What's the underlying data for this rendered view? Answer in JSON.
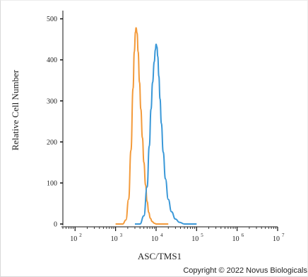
{
  "chart_data": {
    "type": "line",
    "title": "",
    "xlabel": "ASC/TMS1",
    "ylabel": "Relative Cell Number",
    "x_scale": "log",
    "xlim": [
      50,
      10000000
    ],
    "ylim": [
      0,
      520
    ],
    "y_ticks": [
      0,
      100,
      200,
      300,
      400,
      500
    ],
    "x_ticks": [
      {
        "base": "10",
        "exp": "2"
      },
      {
        "base": "10",
        "exp": "3"
      },
      {
        "base": "10",
        "exp": "4"
      },
      {
        "base": "10",
        "exp": "5"
      },
      {
        "base": "10",
        "exp": "6"
      },
      {
        "base": "10",
        "exp": "7"
      }
    ],
    "x_tick_values": [
      100,
      1000,
      10000,
      100000,
      1000000,
      10000000
    ],
    "grid": false,
    "legend": "none",
    "series": [
      {
        "color": "#f39a3a",
        "x": [
          1000,
          1500,
          1800,
          2100,
          2400,
          2700,
          2900,
          3100,
          3200,
          3400,
          3600,
          3900,
          4200,
          4600,
          5000,
          5500,
          6000,
          6600,
          7200,
          8000,
          9000,
          10000,
          20000
        ],
        "y": [
          0,
          0,
          10,
          60,
          180,
          330,
          420,
          468,
          478,
          465,
          420,
          345,
          280,
          210,
          150,
          95,
          55,
          28,
          14,
          6,
          2,
          0,
          0
        ]
      },
      {
        "color": "#3a98d8",
        "x": [
          3000,
          4000,
          5000,
          6000,
          6800,
          7500,
          8200,
          9000,
          9600,
          10000,
          10500,
          11000,
          11700,
          12500,
          13500,
          15000,
          17000,
          20000,
          24000,
          30000,
          38000,
          50000,
          100000
        ],
        "y": [
          0,
          0,
          20,
          90,
          190,
          280,
          345,
          395,
          425,
          438,
          432,
          408,
          360,
          305,
          245,
          175,
          110,
          60,
          30,
          12,
          4,
          0,
          0
        ]
      }
    ]
  },
  "copyright": "Copyright © 2022 Novus Biologicals"
}
